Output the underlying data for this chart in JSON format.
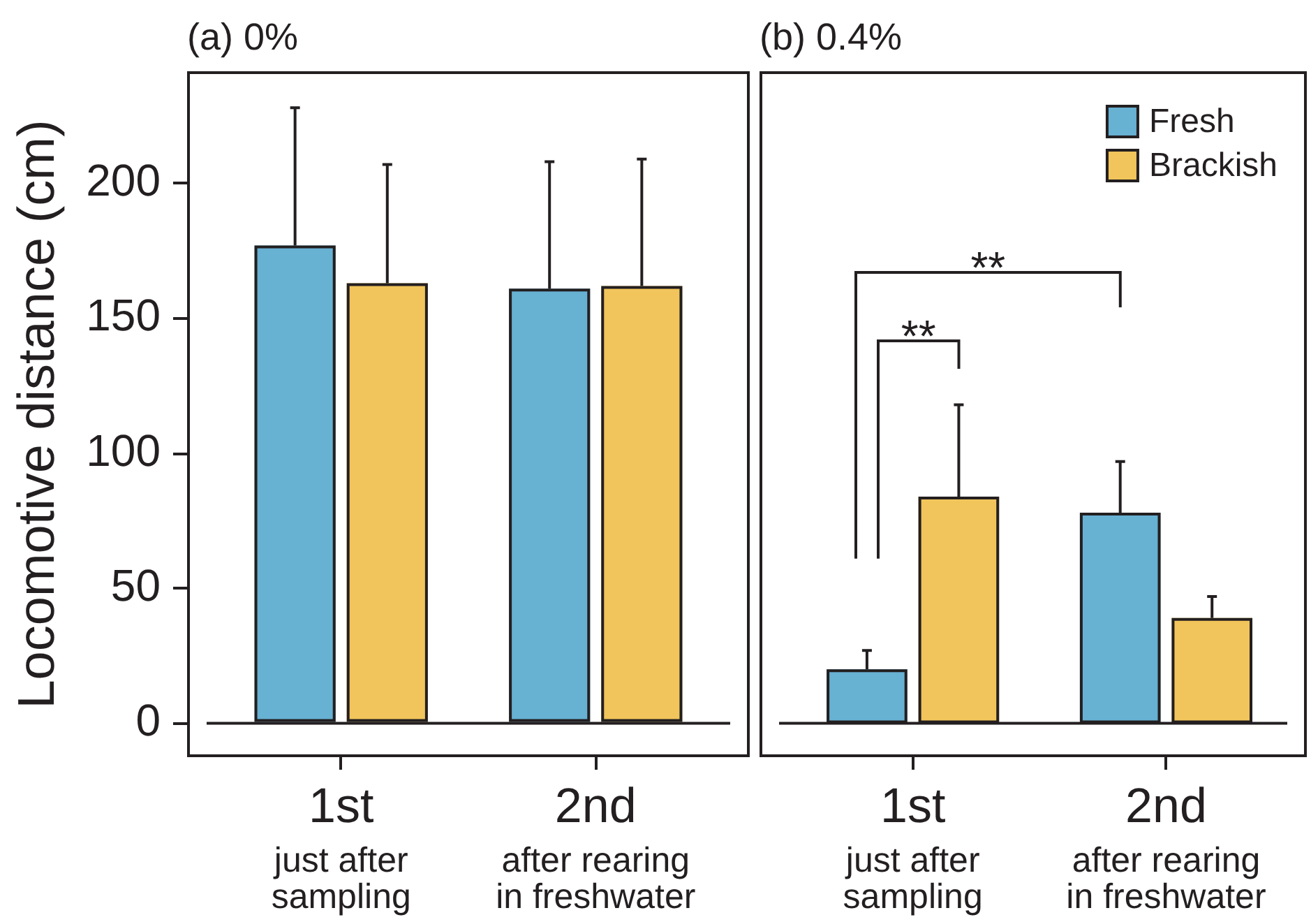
{
  "chart_data": [
    {
      "type": "bar",
      "title": "(a) 0%",
      "ylabel": "Locomotive distance (cm)",
      "categories": [
        "1st\njust after\nsampling",
        "2nd\nafter rearing\nin freshwater"
      ],
      "series": [
        {
          "color": "#67b1d3",
          "values": [
            177,
            161
          ],
          "errors": [
            [
              177,
              228
            ],
            [
              161,
              208
            ]
          ]
        },
        {
          "color": "#f1c55b",
          "values": [
            163,
            162
          ],
          "errors": [
            [
              163,
              207
            ],
            [
              162,
              209
            ]
          ]
        }
      ],
      "ylim": [
        -12,
        241
      ],
      "yticks": [
        0,
        50,
        100,
        150,
        200
      ],
      "ref_lines": [
        {
          "axis": "y",
          "value": 0
        }
      ]
    },
    {
      "type": "bar",
      "title": "(b) 0.4%",
      "categories": [
        "1st\njust after\nsampling",
        "2nd\nafter rearing\nin freshwater"
      ],
      "series": [
        {
          "name": "Fresh",
          "color": "#67b1d3",
          "values": [
            20,
            78
          ],
          "errors": [
            [
              20,
              27
            ],
            [
              78,
              97
            ]
          ]
        },
        {
          "name": "Brackish",
          "color": "#f1c55b",
          "values": [
            84,
            39
          ],
          "errors": [
            [
              84,
              118
            ],
            [
              39,
              47
            ]
          ]
        }
      ],
      "ylim": [
        -12,
        241
      ],
      "tick_labels": "x",
      "legend": "top right",
      "annotations": [
        "**",
        "**"
      ],
      "ref_lines": [
        {
          "axis": "y",
          "value": 0
        }
      ]
    }
  ]
}
